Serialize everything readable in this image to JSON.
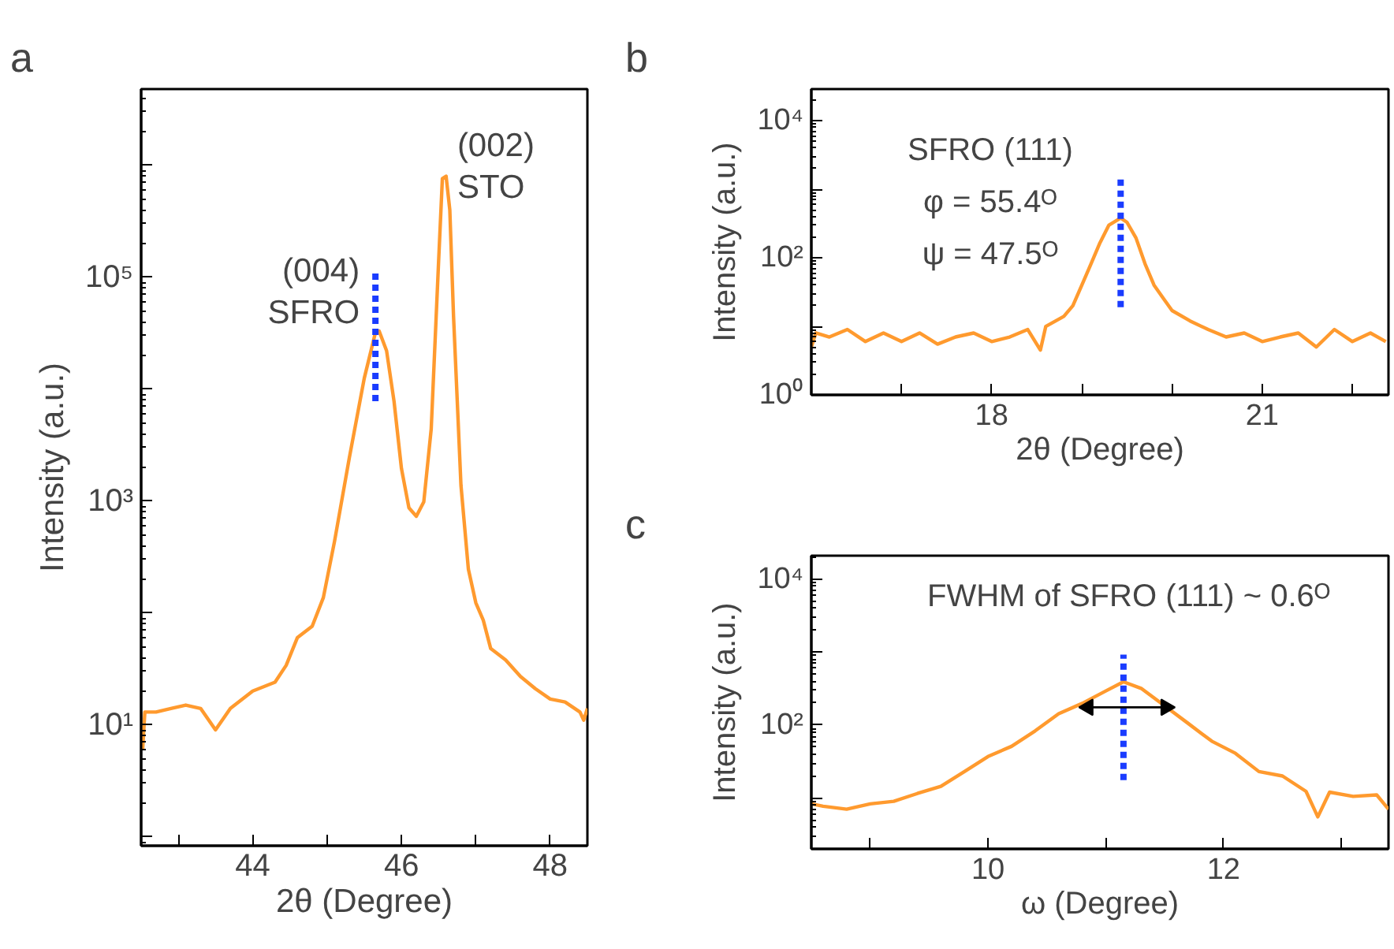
{
  "chart_data": [
    {
      "type": "line",
      "title": "a",
      "xlabel": "2θ (Degree)",
      "ylabel": "Intensity (a.u.)",
      "log": "y",
      "xlim": [
        42.5,
        48.5
      ],
      "ylim": [
        0.83,
        4800000
      ],
      "xticks": [
        {
          "value": 43,
          "label": null
        },
        44,
        {
          "value": 45,
          "label": null
        },
        46,
        {
          "value": 47,
          "label": null
        },
        48
      ],
      "yticks": [
        {
          "value": 1,
          "label": null
        },
        {
          "value": 10,
          "label": "10¹"
        },
        {
          "value": 100,
          "label": null
        },
        {
          "value": 1000,
          "label": "10³"
        },
        {
          "value": 10000,
          "label": null
        },
        {
          "value": 100000,
          "label": "10⁵"
        },
        {
          "value": 1000000,
          "label": null
        }
      ],
      "series": [
        {
          "color": "#ff9a2e",
          "x": [
            42.52,
            42.55,
            42.7,
            42.9,
            43.1,
            43.3,
            43.5,
            43.7,
            44.0,
            44.3,
            44.45,
            44.6,
            44.8,
            44.95,
            45.1,
            45.3,
            45.5,
            45.65,
            45.7,
            45.8,
            45.9,
            46.0,
            46.1,
            46.2,
            46.3,
            46.4,
            46.5,
            46.55,
            46.6,
            46.65,
            46.7,
            46.8,
            46.9,
            47.0,
            47.1,
            47.2,
            47.4,
            47.6,
            47.8,
            48.0,
            48.2,
            48.4,
            48.45,
            48.5
          ],
          "values": [
            6,
            13,
            13,
            14,
            15,
            14,
            9,
            14,
            20,
            24,
            34,
            60,
            76,
            137,
            435,
            2450,
            12500,
            32000,
            33000,
            22000,
            7800,
            1950,
            870,
            730,
            980,
            4400,
            141000,
            760000,
            800000,
            400000,
            45000,
            1380,
            245,
            123,
            86,
            48,
            38,
            27,
            21,
            17,
            16,
            13,
            11,
            14
          ]
        },
        {
          "color": "#1a3cff",
          "line_style": "dashed",
          "x": [
            45.65,
            45.65
          ],
          "values": [
            7800,
            110000
          ]
        }
      ],
      "annotations": [
        {
          "text": "(004)\nSFRO",
          "x": 45.65,
          "y": 33000
        },
        {
          "text": "(002)\nSTO",
          "x": 46.58,
          "y": 800000
        }
      ]
    },
    {
      "type": "line",
      "title": "b",
      "xlabel": "2θ (Degree)",
      "ylabel": "Intensity (a.u.)",
      "log": "y",
      "xlim": [
        16,
        22.4
      ],
      "ylim": [
        1,
        29000
      ],
      "xticks": [
        {
          "value": 17,
          "label": null
        },
        18,
        {
          "value": 19,
          "label": null
        },
        {
          "value": 20,
          "label": null
        },
        21,
        {
          "value": 22,
          "label": null
        }
      ],
      "yticks": [
        {
          "value": 1,
          "label": "10⁰"
        },
        {
          "value": 10,
          "label": null
        },
        {
          "value": 100,
          "label": "10²"
        },
        {
          "value": 1000,
          "label": null
        },
        {
          "value": 10000,
          "label": "10⁴"
        }
      ],
      "series": [
        {
          "color": "#ff9a2e",
          "x": [
            16.0,
            16.05,
            16.2,
            16.4,
            16.6,
            16.8,
            17.0,
            17.2,
            17.4,
            17.6,
            17.8,
            18.0,
            18.2,
            18.4,
            18.54,
            18.6,
            18.8,
            18.9,
            19.0,
            19.1,
            19.2,
            19.3,
            19.43,
            19.5,
            19.6,
            19.7,
            19.8,
            19.9,
            20.0,
            20.2,
            20.4,
            20.6,
            20.8,
            21.0,
            21.2,
            21.4,
            21.6,
            21.8,
            22.0,
            22.2,
            22.37
          ],
          "values": [
            5,
            8,
            7,
            9,
            6,
            8,
            6,
            8,
            5.5,
            7,
            8,
            6,
            7,
            9,
            4.5,
            10,
            14,
            20,
            40,
            81,
            165,
            300,
            380,
            330,
            195,
            82,
            40,
            26,
            17,
            12,
            9,
            7,
            8,
            6,
            7,
            8,
            5,
            9,
            6,
            8,
            6
          ]
        },
        {
          "color": "#1a3cff",
          "line_style": "dashed",
          "x": [
            19.43,
            19.43
          ],
          "values": [
            19,
            1500
          ]
        }
      ],
      "annotations": [
        "SFRO (111)",
        "φ = 55.4ᴼ",
        "ψ = 47.5ᴼ"
      ]
    },
    {
      "type": "line",
      "title": "c",
      "xlabel": "ω (Degree)",
      "ylabel": "Intensity (a.u.)",
      "log": "y",
      "xlim": [
        8.5,
        13.4
      ],
      "ylim": [
        2,
        21000
      ],
      "xticks": [
        {
          "value": 9,
          "label": null
        },
        10,
        {
          "value": 11,
          "label": null
        },
        12,
        {
          "value": 13,
          "label": null
        }
      ],
      "yticks": [
        {
          "value": 10,
          "label": null
        },
        {
          "value": 100,
          "label": "10²"
        },
        {
          "value": 1000,
          "label": null
        },
        {
          "value": 10000,
          "label": "10⁴"
        }
      ],
      "series": [
        {
          "color": "#ff9a2e",
          "x": [
            8.5,
            8.6,
            8.8,
            9.0,
            9.2,
            9.4,
            9.6,
            9.8,
            10.0,
            10.2,
            10.4,
            10.6,
            10.8,
            11.0,
            11.15,
            11.3,
            11.5,
            11.7,
            11.9,
            12.1,
            12.3,
            12.5,
            12.7,
            12.8,
            12.9,
            13.1,
            13.3,
            13.4
          ],
          "values": [
            8.3,
            7.7,
            7,
            8.3,
            9,
            11.5,
            14.4,
            23,
            37,
            51,
            83,
            143,
            198,
            293,
            392,
            318,
            183,
            105,
            60,
            41,
            23,
            20,
            12.3,
            5.5,
            12,
            10.5,
            11,
            7
          ]
        },
        {
          "color": "#1a3cff",
          "line_style": "dashed",
          "x": [
            11.15,
            11.15
          ],
          "values": [
            17.5,
            925
          ]
        },
        {
          "color": "#000000",
          "marker": "triangle",
          "x": [
            10.85,
            11.51
          ],
          "values": [
            175,
            175
          ]
        }
      ],
      "annotations": [
        "FWHM of SFRO (111) ~ 0.6ᴼ"
      ]
    }
  ]
}
